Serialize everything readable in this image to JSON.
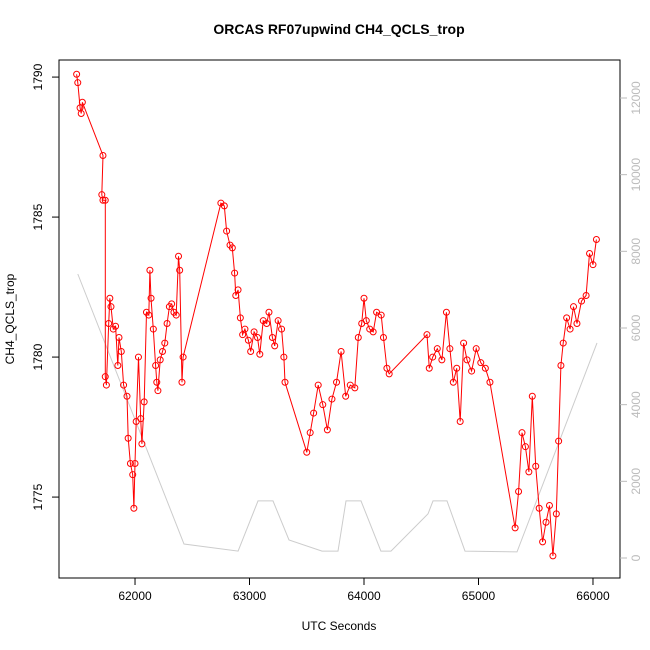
{
  "chart_data": {
    "type": "line",
    "title": "ORCAS RF07upwind CH4_QCLS_trop",
    "x_label": "UTC Seconds",
    "y_label": "CH4_QCLS_trop",
    "xlim": [
      61336,
      66236
    ],
    "ylim": [
      1772.11,
      1790.61
    ],
    "y2lim": [
      -522,
      12991
    ],
    "xticks": [
      62000,
      63000,
      64000,
      65000,
      66000
    ],
    "yticks": [
      1775,
      1780,
      1785,
      1790
    ],
    "y2ticks": [
      0,
      2000,
      4000,
      6000,
      8000,
      10000,
      12000
    ],
    "series": [
      {
        "color": "#cccccc",
        "axis": "y2",
        "x": [
          61500,
          62428,
          62900,
          63074,
          63205,
          63345,
          63633,
          63773,
          63843,
          63974,
          64148,
          64236,
          64559,
          64603,
          64725,
          64882,
          65336,
          66035
        ],
        "values": [
          7409,
          365,
          180,
          1490,
          1490,
          470,
          180,
          180,
          1490,
          1490,
          180,
          180,
          1150,
          1490,
          1490,
          180,
          160,
          5610
        ]
      },
      {
        "color": "#ff0000",
        "x": [
          61490,
          61500,
          61520,
          61530,
          61540,
          61720,
          61710,
          61720,
          61740,
          61740,
          61750,
          61770,
          61780,
          61790,
          61810,
          61830,
          61850,
          61860,
          61880,
          61900,
          61930,
          61940,
          61960,
          61980,
          61990,
          62000,
          62010,
          62030,
          62050,
          62060,
          62080,
          62100,
          62120,
          62130,
          62140,
          62160,
          62180,
          62190,
          62200,
          62220,
          62240,
          62260,
          62280,
          62300,
          62320,
          62340,
          62360,
          62380,
          62390,
          62410,
          62420,
          62750,
          62780,
          62800,
          62830,
          62850,
          62870,
          62880,
          62900,
          62920,
          62940,
          62960,
          62990,
          63010,
          63040,
          63070,
          63090,
          63120,
          63150,
          63170,
          63200,
          63220,
          63250,
          63280,
          63300,
          63310,
          63500,
          63530,
          63560,
          63600,
          63640,
          63680,
          63720,
          63760,
          63800,
          63840,
          63880,
          63920,
          63950,
          63980,
          64000,
          64020,
          64050,
          64080,
          64110,
          64150,
          64170,
          64200,
          64220,
          64550,
          64570,
          64600,
          64640,
          64680,
          64720,
          64750,
          64780,
          64810,
          64840,
          64870,
          64900,
          64940,
          64980,
          65020,
          65060,
          65100,
          65320,
          65350,
          65380,
          65410,
          65440,
          65470,
          65500,
          65530,
          65560,
          65590,
          65620,
          65650,
          65680,
          65700,
          65720,
          65740,
          65770,
          65800,
          65830,
          65860,
          65900,
          65940,
          65970,
          66000,
          66030
        ],
        "values": [
          1790.1,
          1789.8,
          1788.9,
          1788.7,
          1789.1,
          1787.2,
          1785.8,
          1785.6,
          1785.6,
          1779.3,
          1779.0,
          1781.2,
          1782.1,
          1781.8,
          1781.0,
          1781.1,
          1779.7,
          1780.7,
          1780.2,
          1779.0,
          1778.6,
          1777.1,
          1776.2,
          1775.8,
          1774.6,
          1776.2,
          1777.7,
          1780.0,
          1777.8,
          1776.9,
          1778.4,
          1781.6,
          1781.5,
          1783.1,
          1782.1,
          1781.0,
          1779.7,
          1779.1,
          1778.8,
          1779.9,
          1780.2,
          1780.5,
          1781.2,
          1781.8,
          1781.9,
          1781.6,
          1781.5,
          1783.6,
          1783.1,
          1779.1,
          1780.0,
          1785.5,
          1785.4,
          1784.5,
          1784.0,
          1783.9,
          1783.0,
          1782.2,
          1782.4,
          1781.4,
          1780.8,
          1781.0,
          1780.6,
          1780.2,
          1780.9,
          1780.7,
          1780.1,
          1781.3,
          1781.2,
          1781.6,
          1780.7,
          1780.4,
          1781.3,
          1781.0,
          1780.0,
          1779.1,
          1776.6,
          1777.3,
          1778.0,
          1779.0,
          1778.3,
          1777.4,
          1778.5,
          1779.1,
          1780.2,
          1778.6,
          1779.0,
          1778.9,
          1780.7,
          1781.2,
          1782.1,
          1781.3,
          1781.0,
          1780.9,
          1781.6,
          1781.5,
          1780.7,
          1779.6,
          1779.4,
          1780.8,
          1779.6,
          1780.0,
          1780.3,
          1779.9,
          1781.6,
          1780.3,
          1779.1,
          1779.6,
          1777.7,
          1780.5,
          1779.9,
          1779.5,
          1780.3,
          1779.8,
          1779.6,
          1779.1,
          1773.9,
          1775.2,
          1777.3,
          1776.8,
          1775.9,
          1778.6,
          1776.1,
          1774.6,
          1773.4,
          1774.1,
          1774.7,
          1772.9,
          1774.4,
          1777.0,
          1779.7,
          1780.5,
          1781.4,
          1781.0,
          1781.8,
          1781.2,
          1782.0,
          1782.2,
          1783.7,
          1783.3,
          1784.2
        ]
      }
    ]
  }
}
